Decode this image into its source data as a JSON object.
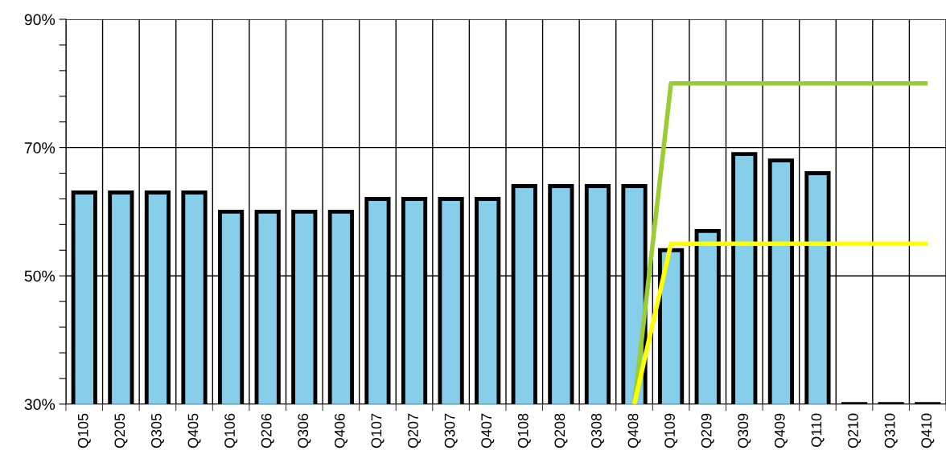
{
  "chart_data": {
    "type": "bar",
    "categories": [
      "Q105",
      "Q205",
      "Q305",
      "Q405",
      "Q106",
      "Q206",
      "Q306",
      "Q406",
      "Q107",
      "Q207",
      "Q307",
      "Q407",
      "Q108",
      "Q208",
      "Q308",
      "Q408",
      "Q109",
      "Q209",
      "Q309",
      "Q409",
      "Q110",
      "Q210",
      "Q310",
      "Q410"
    ],
    "series": [
      {
        "color": "#87ceeb",
        "values": [
          63,
          63,
          63,
          63,
          60,
          60,
          60,
          60,
          62,
          62,
          62,
          62,
          64,
          64,
          64,
          64,
          54,
          57,
          69,
          68,
          66,
          30,
          30,
          30
        ]
      },
      {
        "type": "line",
        "color": "#9acd32",
        "values": [
          null,
          null,
          null,
          null,
          null,
          null,
          null,
          null,
          null,
          null,
          null,
          null,
          null,
          null,
          null,
          30,
          80,
          80,
          80,
          80,
          80,
          80,
          80,
          80
        ]
      },
      {
        "type": "line",
        "color": "#ffff00",
        "values": [
          null,
          null,
          null,
          null,
          null,
          null,
          null,
          null,
          null,
          null,
          null,
          null,
          null,
          null,
          null,
          30,
          55,
          55,
          55,
          55,
          55,
          55,
          55,
          55
        ]
      }
    ],
    "ylim": [
      30,
      90
    ],
    "yticks": [
      {
        "value": 30,
        "label": "30%"
      },
      {
        "value": 34,
        "label": null
      },
      {
        "value": 38,
        "label": null
      },
      {
        "value": 42,
        "label": null
      },
      {
        "value": 46,
        "label": null
      },
      {
        "value": 50,
        "label": "50%"
      },
      {
        "value": 54,
        "label": null
      },
      {
        "value": 58,
        "label": null
      },
      {
        "value": 62,
        "label": null
      },
      {
        "value": 66,
        "label": null
      },
      {
        "value": 70,
        "label": "70%"
      },
      {
        "value": 74,
        "label": null
      },
      {
        "value": 78,
        "label": null
      },
      {
        "value": 82,
        "label": null
      },
      {
        "value": 86,
        "label": null
      },
      {
        "value": 90,
        "label": "90%"
      }
    ],
    "grid": true
  }
}
